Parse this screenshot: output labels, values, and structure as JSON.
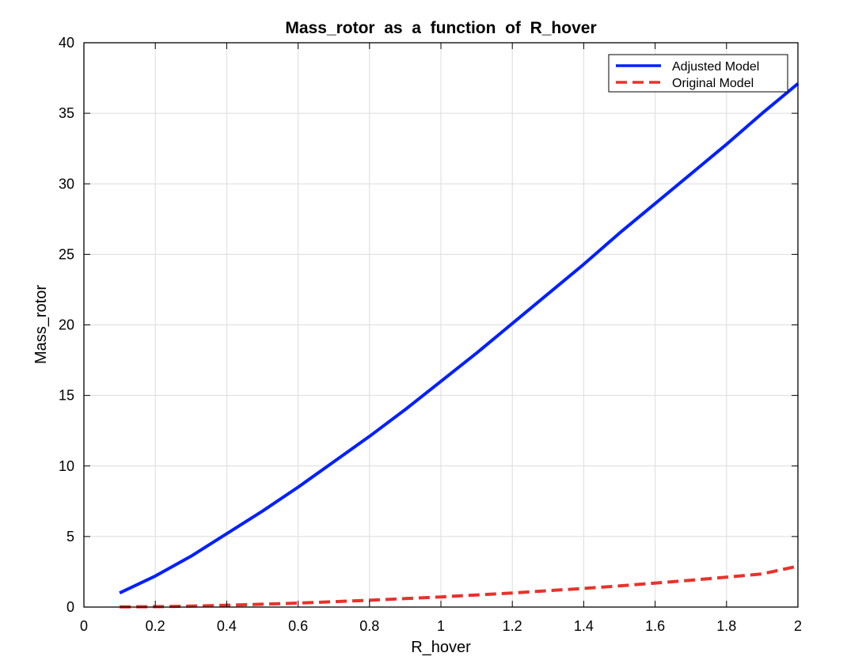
{
  "chart_data": {
    "type": "line",
    "title": "Mass_rotor  as  a  function  of  R_hover",
    "xlabel": "R_hover",
    "ylabel": "Mass_rotor",
    "xlim": [
      0,
      2
    ],
    "ylim": [
      0,
      40
    ],
    "xticks": [
      0,
      0.2,
      0.4,
      0.6,
      0.8,
      1,
      1.2,
      1.4,
      1.6,
      1.8,
      2
    ],
    "xtick_labels": [
      "0",
      "0.2",
      "0.4",
      "0.6",
      "0.8",
      "1",
      "1.2",
      "1.4",
      "1.6",
      "1.8",
      "2"
    ],
    "yticks": [
      0,
      5,
      10,
      15,
      20,
      25,
      30,
      35,
      40
    ],
    "ytick_labels": [
      "0",
      "5",
      "10",
      "15",
      "20",
      "25",
      "30",
      "35",
      "40"
    ],
    "grid": true,
    "legend_position": "top-right",
    "x": [
      0.1,
      0.2,
      0.3,
      0.4,
      0.5,
      0.6,
      0.7,
      0.8,
      0.9,
      1.0,
      1.1,
      1.2,
      1.3,
      1.4,
      1.5,
      1.6,
      1.7,
      1.8,
      1.9,
      2.0
    ],
    "series": [
      {
        "name": "Adjusted Model",
        "color": "#0020ff",
        "style": "solid",
        "values": [
          1.0,
          2.2,
          3.6,
          5.2,
          6.8,
          8.5,
          10.3,
          12.1,
          14.0,
          16.0,
          18.0,
          20.1,
          22.2,
          24.3,
          26.5,
          28.6,
          30.7,
          32.8,
          35.0,
          37.1
        ]
      },
      {
        "name": "Original Model",
        "color": "#e8322b",
        "style": "dashed",
        "values": [
          0.01,
          0.03,
          0.07,
          0.13,
          0.2,
          0.28,
          0.38,
          0.48,
          0.6,
          0.72,
          0.86,
          1.0,
          1.16,
          1.32,
          1.5,
          1.7,
          1.9,
          2.12,
          2.35,
          2.9
        ]
      }
    ]
  }
}
